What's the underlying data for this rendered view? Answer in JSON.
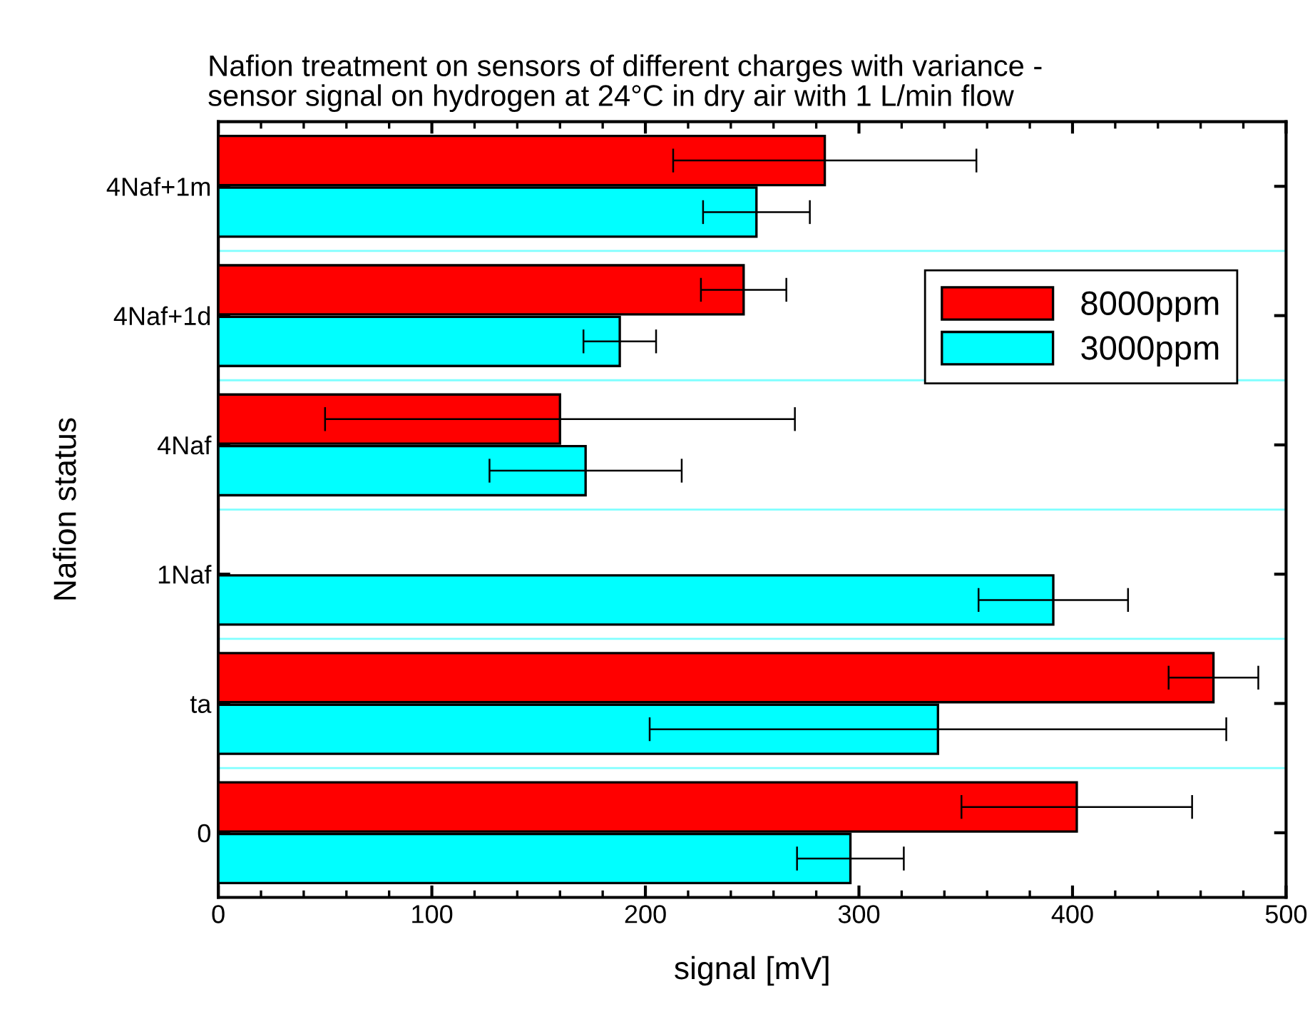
{
  "chart_data": {
    "type": "bar",
    "orientation": "horizontal",
    "title": "Nafion treatment on sensors of different charges with variance -\nsensor signal on hydrogen at 24°C in dry air with 1 L/min flow",
    "xlabel": "signal [mV]",
    "ylabel": "Nafion status",
    "categories": [
      "4Naf+1m",
      "4Naf+1d",
      "4Naf",
      "1Naf",
      "ta",
      "0"
    ],
    "series": [
      {
        "name": "8000ppm",
        "color": "#ff0000",
        "values": [
          284,
          246,
          160,
          null,
          466,
          402
        ],
        "errors": [
          71,
          20,
          110,
          null,
          21,
          54
        ]
      },
      {
        "name": "3000ppm",
        "color": "#00ffff",
        "values": [
          252,
          188,
          172,
          391,
          337,
          296
        ],
        "errors": [
          25,
          17,
          45,
          35,
          135,
          25
        ]
      }
    ],
    "xlim": [
      0,
      500
    ],
    "xticks": [
      0,
      100,
      200,
      300,
      400,
      500
    ],
    "grid": "y",
    "legend": "top right"
  }
}
